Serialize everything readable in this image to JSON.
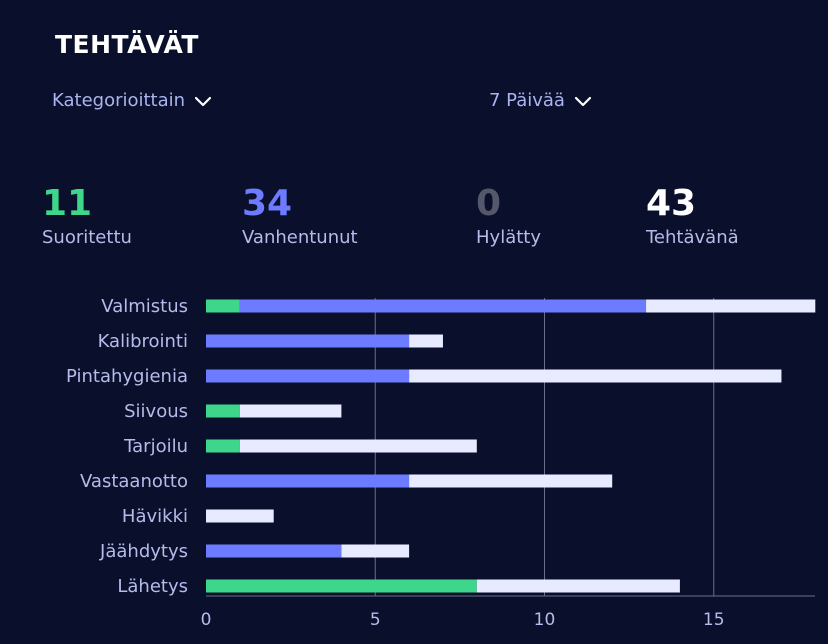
{
  "header": {
    "title": "TEHTÄVÄT"
  },
  "filters": {
    "category": {
      "label": "Kategorioittain",
      "icon": "chevron-down-icon"
    },
    "period": {
      "label": "7 Päivää",
      "icon": "chevron-down-icon"
    }
  },
  "stats": [
    {
      "value": "11",
      "label": "Suoritettu",
      "color": "#3ed68a"
    },
    {
      "value": "34",
      "label": "Vanhentunut",
      "color": "#6c7bff"
    },
    {
      "value": "0",
      "label": "Hylätty",
      "color": "#55586a"
    },
    {
      "value": "43",
      "label": "Tehtävänä",
      "color": "#ffffff"
    }
  ],
  "chart_data": {
    "type": "bar",
    "orientation": "horizontal",
    "stacked": true,
    "categories": [
      "Valmistus",
      "Kalibrointi",
      "Pintahygienia",
      "Siivous",
      "Tarjoilu",
      "Vastaanotto",
      "Hävikki",
      "Jäähdytys",
      "Lähetys"
    ],
    "series": [
      {
        "name": "Suoritettu",
        "color": "#3ed68a",
        "values": [
          1,
          0,
          0,
          1,
          1,
          0,
          0,
          0,
          8
        ]
      },
      {
        "name": "Vanhentunut",
        "color": "#6c7bff",
        "values": [
          12,
          6,
          6,
          0,
          0,
          6,
          0,
          4,
          0
        ]
      },
      {
        "name": "Tehtävänä",
        "color": "#e8eaff",
        "values": [
          5,
          1,
          11,
          3,
          7,
          6,
          2,
          2,
          6
        ]
      }
    ],
    "xlim": [
      0,
      18
    ],
    "xticks": [
      "0",
      "5",
      "10",
      "15"
    ],
    "grid": true
  }
}
